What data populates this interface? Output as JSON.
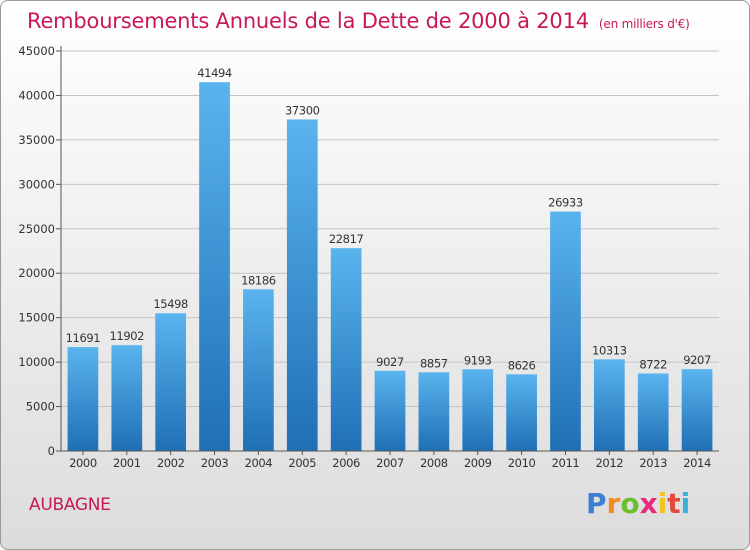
{
  "title": "Remboursements Annuels de la Dette de 2000 à 2014",
  "unit": "(en milliers d'€)",
  "commune": "AUBAGNE",
  "brand": {
    "letters": [
      "P",
      "r",
      "o",
      "x",
      "i",
      "t",
      "i"
    ],
    "colors": [
      "#3a7fd1",
      "#f28c1e",
      "#6abf2e",
      "#e8287c",
      "#f2c21e",
      "#e24a3b",
      "#3ab0d9"
    ]
  },
  "colors": {
    "bar_top": "#5ab4ee",
    "bar_bottom": "#1f6fb5",
    "title": "#c8185a"
  },
  "chart_data": {
    "type": "bar",
    "title": "Remboursements Annuels de la Dette de 2000 à 2014",
    "categories": [
      "2000",
      "2001",
      "2002",
      "2003",
      "2004",
      "2005",
      "2006",
      "2007",
      "2008",
      "2009",
      "2010",
      "2011",
      "2012",
      "2013",
      "2014"
    ],
    "values": [
      11691,
      11902,
      15498,
      41494,
      18186,
      37300,
      22817,
      9027,
      8857,
      9193,
      8626,
      26933,
      10313,
      8722,
      9207
    ],
    "yticks": [
      0,
      5000,
      10000,
      15000,
      20000,
      25000,
      30000,
      35000,
      40000,
      45000
    ],
    "ylim": [
      0,
      45000
    ],
    "grid": true,
    "data_labels": true
  }
}
